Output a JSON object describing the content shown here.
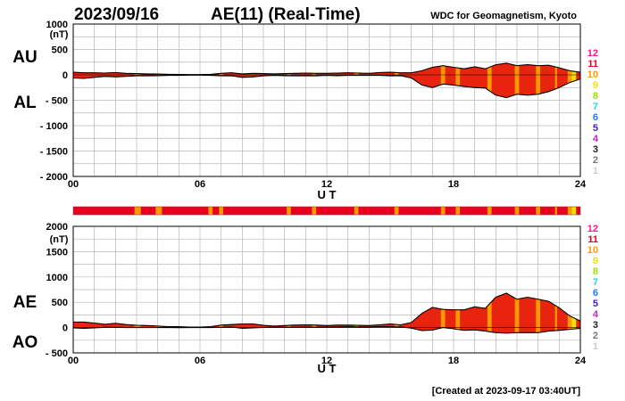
{
  "header": {
    "date": "2023/09/16",
    "title": "AE(11) (Real-Time)",
    "institution": "WDC for Geomagnetism, Kyoto"
  },
  "footer": {
    "created": "[Created at 2023-09-17 03:40UT]"
  },
  "station_count_legend": [
    "12",
    "11",
    "10",
    "9",
    "8",
    "7",
    "6",
    "5",
    "4",
    "3",
    "2",
    "1"
  ],
  "station_count_colors": [
    "#ff1493",
    "#e8001e",
    "#ff9900",
    "#f2e200",
    "#9ee000",
    "#27d4e0",
    "#1f78ff",
    "#3a1fd0",
    "#cc22cc",
    "#222222",
    "#777777",
    "#cccccc"
  ],
  "fill_colors": {
    "main": "#e8240f",
    "count10": "#ff9d00",
    "count9": "#f0dc00"
  },
  "chart_data": [
    {
      "type": "area",
      "title": "AU / AL",
      "series_labels": [
        "AU",
        "AL"
      ],
      "units": "(nT)",
      "xlabel": "U T",
      "xlim": [
        0,
        24
      ],
      "x_ticks": [
        "00",
        "06",
        "12",
        "18",
        "24"
      ],
      "ylim": [
        -2000,
        1000
      ],
      "y_ticks": [
        1000,
        500,
        0,
        -500,
        -1000,
        -1500,
        -2000
      ],
      "y_tick_labels": [
        "1000",
        "500",
        "0",
        "- 500",
        "- 1000",
        "- 1500",
        "- 2000"
      ],
      "x": [
        0,
        0.5,
        1,
        1.5,
        2,
        2.5,
        3,
        3.5,
        4,
        4.5,
        5,
        5.5,
        6,
        6.5,
        7,
        7.5,
        8,
        8.5,
        9,
        9.5,
        10,
        10.5,
        11,
        11.5,
        12,
        12.5,
        13,
        13.5,
        14,
        14.5,
        15,
        15.5,
        16,
        16.5,
        17,
        17.5,
        18,
        18.5,
        19,
        19.5,
        20,
        20.5,
        21,
        21.5,
        22,
        22.5,
        23,
        23.5,
        24
      ],
      "series": [
        {
          "name": "AU",
          "values": [
            50,
            40,
            40,
            35,
            45,
            30,
            25,
            20,
            15,
            10,
            8,
            5,
            5,
            10,
            30,
            40,
            20,
            30,
            25,
            20,
            25,
            30,
            35,
            30,
            30,
            35,
            40,
            35,
            30,
            45,
            50,
            40,
            40,
            80,
            150,
            180,
            150,
            120,
            160,
            120,
            200,
            230,
            180,
            200,
            180,
            190,
            140,
            80,
            50
          ]
        },
        {
          "name": "AL",
          "values": [
            -60,
            -70,
            -50,
            -30,
            -40,
            -30,
            -20,
            -20,
            -15,
            -10,
            -10,
            -5,
            -5,
            -10,
            -20,
            -20,
            -50,
            -40,
            -20,
            -10,
            -15,
            -20,
            -20,
            -20,
            -10,
            -15,
            -10,
            -10,
            -10,
            -10,
            -20,
            -15,
            -60,
            -200,
            -250,
            -180,
            -200,
            -230,
            -250,
            -260,
            -400,
            -450,
            -380,
            -400,
            -380,
            -330,
            -250,
            -150,
            -80
          ]
        }
      ]
    },
    {
      "type": "area",
      "title": "AE / AO",
      "series_labels": [
        "AE",
        "AO"
      ],
      "units": "(nT)",
      "xlabel": "U T",
      "xlim": [
        0,
        24
      ],
      "x_ticks": [
        "00",
        "06",
        "12",
        "18",
        "24"
      ],
      "ylim": [
        -500,
        2000
      ],
      "y_ticks": [
        2000,
        1500,
        1000,
        500,
        0,
        -500
      ],
      "y_tick_labels": [
        "2000",
        "1500",
        "1000",
        "500",
        "0",
        "- 500"
      ],
      "x": [
        0,
        0.5,
        1,
        1.5,
        2,
        2.5,
        3,
        3.5,
        4,
        4.5,
        5,
        5.5,
        6,
        6.5,
        7,
        7.5,
        8,
        8.5,
        9,
        9.5,
        10,
        10.5,
        11,
        11.5,
        12,
        12.5,
        13,
        13.5,
        14,
        14.5,
        15,
        15.5,
        16,
        16.5,
        17,
        17.5,
        18,
        18.5,
        19,
        19.5,
        20,
        20.5,
        21,
        21.5,
        22,
        22.5,
        23,
        23.5,
        24
      ],
      "series": [
        {
          "name": "AE",
          "values": [
            110,
            110,
            90,
            65,
            85,
            60,
            45,
            40,
            30,
            20,
            18,
            10,
            10,
            20,
            50,
            60,
            70,
            70,
            45,
            30,
            40,
            50,
            55,
            50,
            40,
            50,
            50,
            45,
            40,
            55,
            70,
            55,
            100,
            280,
            400,
            360,
            350,
            350,
            410,
            380,
            600,
            680,
            560,
            600,
            560,
            520,
            390,
            230,
            130
          ]
        },
        {
          "name": "AO",
          "values": [
            -5,
            -15,
            -5,
            5,
            5,
            0,
            3,
            0,
            0,
            0,
            -1,
            0,
            0,
            0,
            5,
            10,
            -15,
            -5,
            3,
            5,
            5,
            5,
            8,
            5,
            10,
            10,
            15,
            12,
            10,
            17,
            15,
            12,
            -10,
            -60,
            -50,
            0,
            -25,
            -55,
            -45,
            -70,
            -100,
            -110,
            -100,
            -100,
            -100,
            -70,
            -55,
            -35,
            -15
          ]
        }
      ]
    },
    {
      "type": "heatmap",
      "title": "station count strip",
      "xlim": [
        0,
        24
      ],
      "base_count": "11",
      "segments": [
        {
          "start": 2.9,
          "end": 3.2,
          "count": "10"
        },
        {
          "start": 3.9,
          "end": 4.2,
          "count": "10"
        },
        {
          "start": 6.4,
          "end": 6.6,
          "count": "10"
        },
        {
          "start": 6.9,
          "end": 7.1,
          "count": "10"
        },
        {
          "start": 10.1,
          "end": 10.3,
          "count": "10"
        },
        {
          "start": 11.3,
          "end": 11.5,
          "count": "10"
        },
        {
          "start": 13.3,
          "end": 13.5,
          "count": "10"
        },
        {
          "start": 15.2,
          "end": 15.4,
          "count": "10"
        },
        {
          "start": 17.4,
          "end": 17.6,
          "count": "10"
        },
        {
          "start": 18.1,
          "end": 18.3,
          "count": "10"
        },
        {
          "start": 19.6,
          "end": 19.8,
          "count": "10"
        },
        {
          "start": 20.9,
          "end": 21.1,
          "count": "10"
        },
        {
          "start": 21.9,
          "end": 22.1,
          "count": "10"
        },
        {
          "start": 22.8,
          "end": 22.9,
          "count": "10"
        },
        {
          "start": 23.4,
          "end": 23.6,
          "count": "10"
        },
        {
          "start": 23.6,
          "end": 23.8,
          "count": "9"
        }
      ]
    }
  ]
}
